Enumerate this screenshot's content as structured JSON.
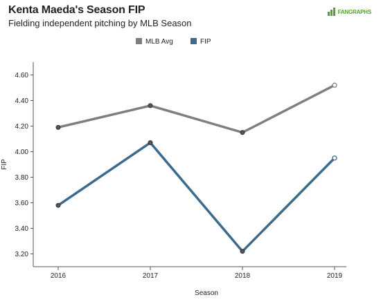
{
  "header": {
    "title": "Kenta Maeda's Season FIP",
    "subtitle": "Fielding independent pitching by MLB Season",
    "logo_text": "FANGRAPHS"
  },
  "colors": {
    "mlb_avg": "#7f7f7f",
    "fip": "#3b6a8f",
    "axis": "#555555",
    "logo_green": "#54a130"
  },
  "chart_data": {
    "type": "line",
    "title": "Kenta Maeda's Season FIP",
    "subtitle": "Fielding independent pitching by MLB Season",
    "xlabel": "Season",
    "ylabel": "FIP",
    "categories": [
      "2016",
      "2017",
      "2018",
      "2019"
    ],
    "ylim": [
      3.1,
      4.7
    ],
    "yticks": [
      "3.20",
      "3.40",
      "3.60",
      "3.80",
      "4.00",
      "4.20",
      "4.40",
      "4.60"
    ],
    "grid": false,
    "legend_position": "top-center",
    "series": [
      {
        "name": "MLB Avg",
        "values": [
          4.19,
          4.36,
          4.15,
          4.52
        ],
        "color": "#7f7f7f"
      },
      {
        "name": "FIP",
        "values": [
          3.58,
          4.07,
          3.22,
          3.95
        ],
        "color": "#3b6a8f"
      }
    ]
  }
}
